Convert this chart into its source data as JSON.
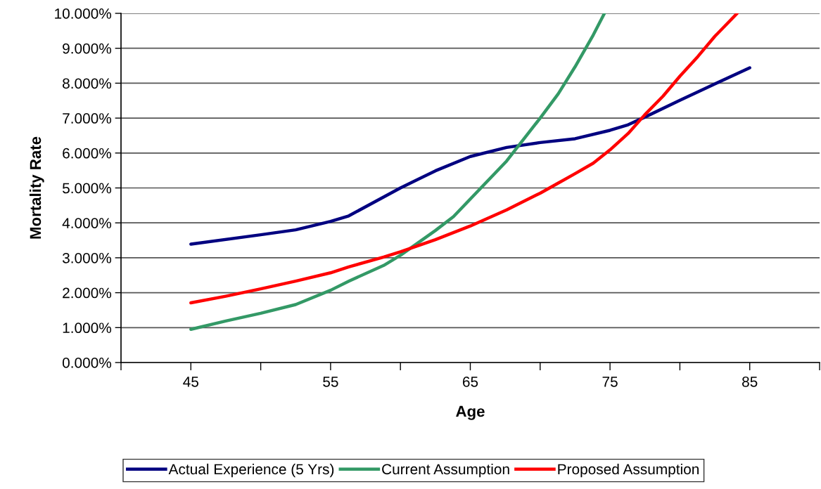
{
  "chart_data": {
    "type": "line",
    "xlabel": "Age",
    "ylabel": "Mortality Rate",
    "xlim": [
      40,
      90
    ],
    "xticks": [
      {
        "value": 40,
        "label": null
      },
      {
        "value": 45,
        "label": "45"
      },
      {
        "value": 50,
        "label": null
      },
      {
        "value": 55,
        "label": "55"
      },
      {
        "value": 60,
        "label": null
      },
      {
        "value": 65,
        "label": "65"
      },
      {
        "value": 70,
        "label": null
      },
      {
        "value": 75,
        "label": "75"
      },
      {
        "value": 80,
        "label": null
      },
      {
        "value": 85,
        "label": "85"
      },
      {
        "value": 90,
        "label": null
      }
    ],
    "ylim": [
      0,
      10
    ],
    "yticks": [
      {
        "value": 0,
        "label": "0.000%"
      },
      {
        "value": 1,
        "label": "1.000%"
      },
      {
        "value": 2,
        "label": "2.000%"
      },
      {
        "value": 3,
        "label": "3.000%"
      },
      {
        "value": 4,
        "label": "4.000%"
      },
      {
        "value": 5,
        "label": "5.000%"
      },
      {
        "value": 6,
        "label": "6.000%"
      },
      {
        "value": 7,
        "label": "7.000%"
      },
      {
        "value": 8,
        "label": "8.000%"
      },
      {
        "value": 9,
        "label": "9.000%"
      },
      {
        "value": 10,
        "label": "10.000%"
      }
    ],
    "grid": "y",
    "legend": "bottom",
    "marker": "none",
    "line_style": "solid",
    "series": [
      {
        "name": "Actual Experience (5 Yrs)",
        "color": "#000080",
        "x": [
          45,
          50,
          52.5,
          55,
          56.3,
          60,
          62.5,
          65,
          67.6,
          70,
          72.5,
          75,
          76.3,
          77.5,
          80,
          82.5,
          85
        ],
        "values": [
          3.39,
          3.66,
          3.8,
          4.04,
          4.2,
          5.0,
          5.49,
          5.9,
          6.16,
          6.3,
          6.41,
          6.65,
          6.81,
          7.03,
          7.51,
          7.98,
          8.44
        ]
      },
      {
        "name": "Current Assumption",
        "color": "#339966",
        "x": [
          45,
          47.5,
          50,
          52.5,
          55,
          56.3,
          58.8,
          60,
          62.5,
          63.8,
          67.6,
          70,
          71.3,
          72.5,
          73.8,
          74.6
        ],
        "values": [
          0.95,
          1.19,
          1.41,
          1.66,
          2.07,
          2.33,
          2.78,
          3.07,
          3.78,
          4.18,
          5.77,
          7.0,
          7.7,
          8.47,
          9.38,
          10.0
        ]
      },
      {
        "name": "Proposed Assumption",
        "color": "#ff0000",
        "x": [
          45,
          47.5,
          50,
          52.5,
          55,
          56.3,
          58.8,
          60,
          62.5,
          65,
          67.6,
          70,
          71.3,
          72.5,
          73.8,
          75,
          76.3,
          77.5,
          78.8,
          80,
          81.3,
          82.5,
          84.1
        ],
        "values": [
          1.71,
          1.9,
          2.11,
          2.33,
          2.57,
          2.74,
          3.02,
          3.17,
          3.52,
          3.91,
          4.37,
          4.85,
          5.14,
          5.41,
          5.71,
          6.09,
          6.56,
          7.1,
          7.63,
          8.2,
          8.77,
          9.34,
          10.0
        ]
      }
    ]
  }
}
